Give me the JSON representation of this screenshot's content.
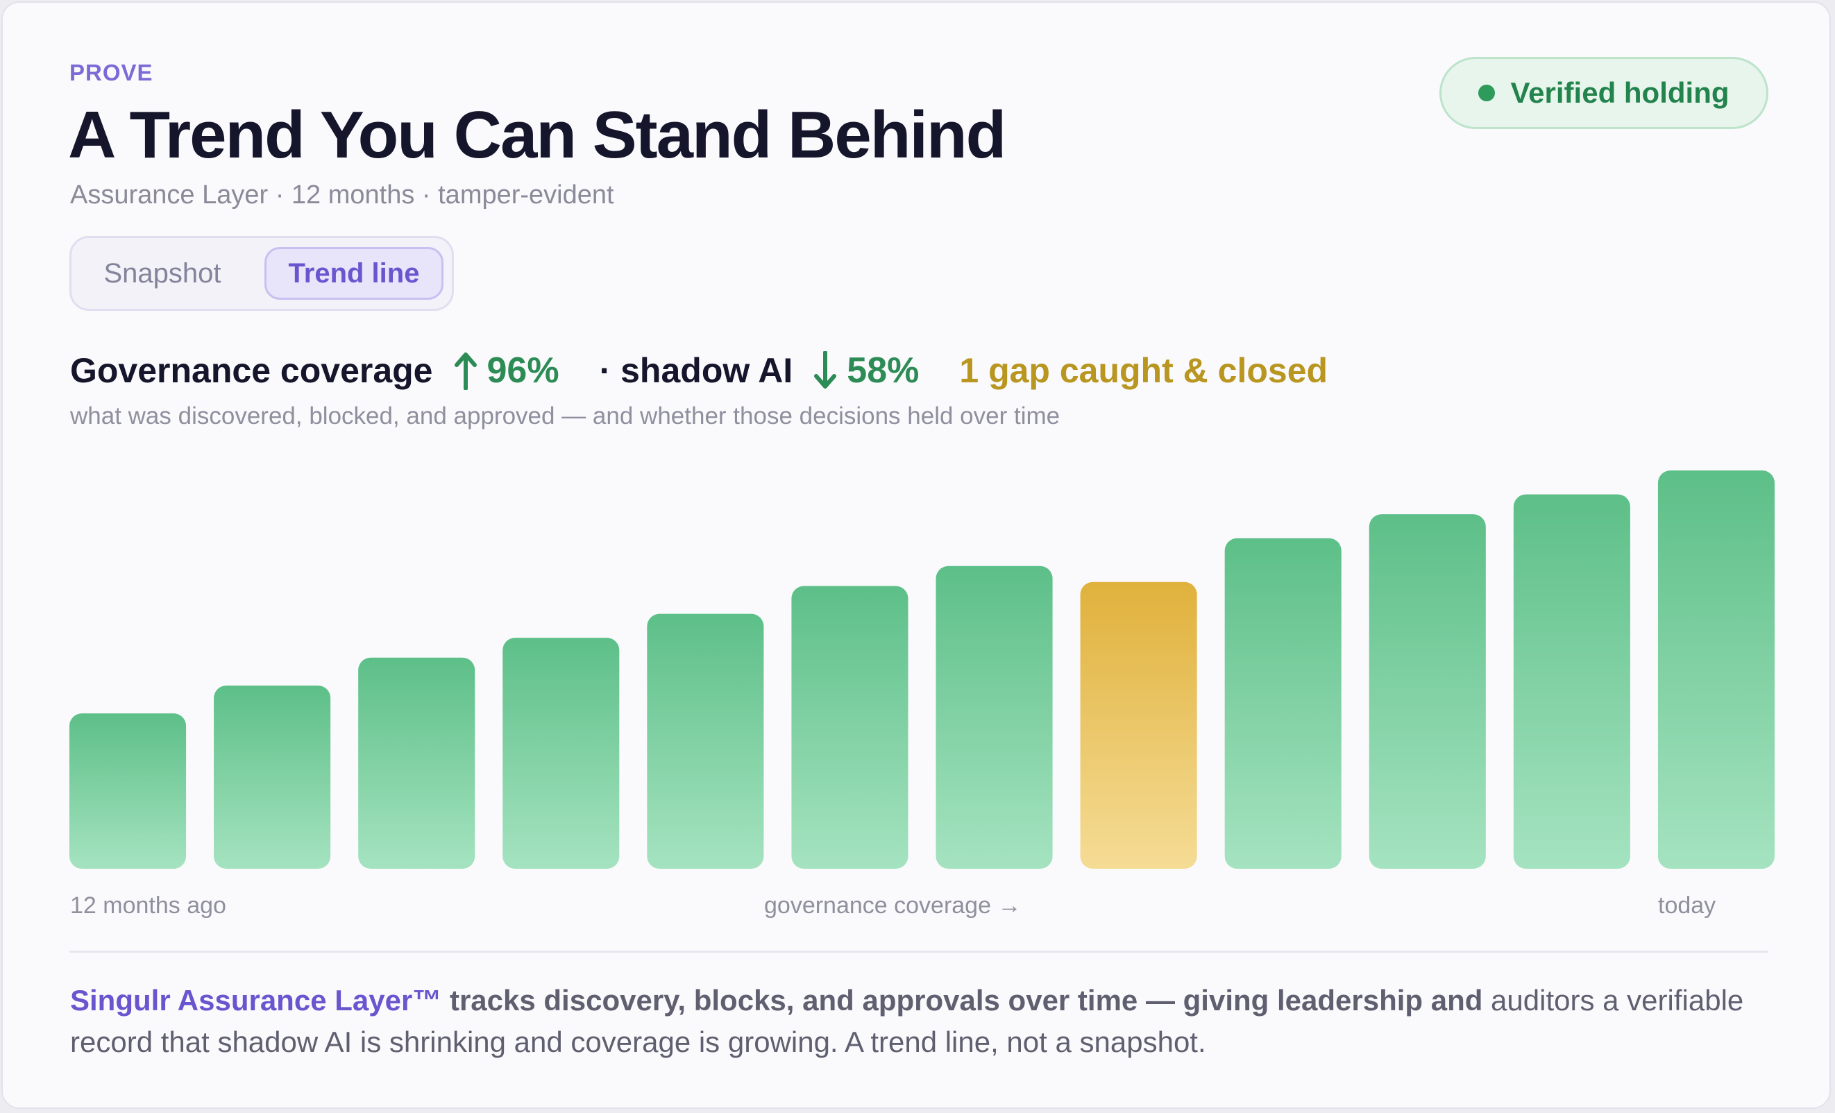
{
  "header": {
    "eyebrow": "PROVE",
    "title": "A Trend You Can Stand Behind",
    "subtitle": "Assurance Layer · 12 months · tamper-evident",
    "badge": "Verified holding"
  },
  "toggle": {
    "options": [
      "Snapshot",
      "Trend line"
    ],
    "selected": "Trend line"
  },
  "stats": {
    "coverage_label": "Governance coverage",
    "coverage_value": "96%",
    "shadow_label": "· shadow AI",
    "shadow_value": "58%",
    "gap_note": "1 gap caught & closed",
    "caption": "what was discovered, blocked, and approved — and whether those decisions held over time"
  },
  "axis": {
    "start": "12 months ago",
    "middle": "governance coverage →",
    "end": "today"
  },
  "footer": {
    "brand": "Singulr Assurance Layer™",
    "lead": " tracks discovery, blocks, and approvals over time — giving leadership and",
    "rest": " auditors a verifiable record that shadow AI is shrinking and coverage is growing. A trend line, not a snapshot."
  },
  "colors": {
    "accent": "#6a55cf",
    "good": "#2d8c55",
    "bar_top": "#5dbf88",
    "bar_bottom": "#a5e3c0",
    "gap_top": "#e0b13c",
    "gap_bottom": "#f5dc95",
    "gap_text": "#b8961f"
  },
  "chart_data": {
    "type": "bar",
    "xlabel": "governance coverage →",
    "categories": [
      "12 months ago",
      "",
      "",
      "",
      "",
      "",
      "",
      "",
      "",
      "",
      "",
      "today"
    ],
    "values": [
      39,
      46,
      53,
      58,
      64,
      71,
      76,
      72,
      83,
      89,
      94,
      100
    ],
    "highlight_index": 7,
    "highlight_label": "1 gap caught & closed",
    "ylim": [
      0,
      100
    ],
    "grid": false
  }
}
